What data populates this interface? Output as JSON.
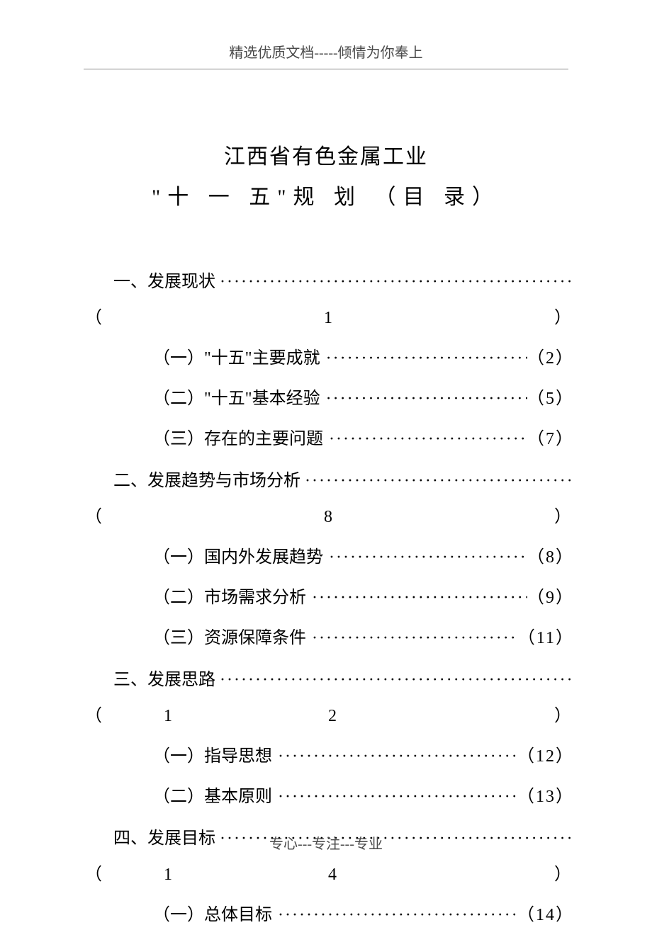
{
  "header": "精选优质文档-----倾情为你奉上",
  "title_line1": "江西省有色金属工业",
  "title_line2": "\"十 一 五\"规 划 （目 录）",
  "dots_long": "·······················································································································",
  "sections": [
    {
      "label": "一、发展现状",
      "page_digits": "1",
      "subs": [
        {
          "label": "（一）\"十五\"主要成就",
          "page": "（2）"
        },
        {
          "label": "（二）\"十五\"基本经验",
          "page": "（5）"
        },
        {
          "label": "（三）存在的主要问题",
          "page": "（7）"
        }
      ]
    },
    {
      "label": "二、发展趋势与市场分析",
      "page_digits": "8",
      "subs": [
        {
          "label": "（一）国内外发展趋势",
          "page": "（8）"
        },
        {
          "label": "（二）市场需求分析",
          "page": "（9）"
        },
        {
          "label": "（三）资源保障条件",
          "page": "（11）"
        }
      ]
    },
    {
      "label": "三、发展思路",
      "page_digits": "12",
      "subs": [
        {
          "label": "（一）指导思想",
          "page": "（12）"
        },
        {
          "label": "（二）基本原则",
          "page": "（13）"
        }
      ]
    },
    {
      "label": "四、发展目标",
      "page_digits": "14",
      "subs": [
        {
          "label": "（一）总体目标",
          "page": "（14）"
        }
      ]
    }
  ],
  "footer": "专心---专注---专业"
}
